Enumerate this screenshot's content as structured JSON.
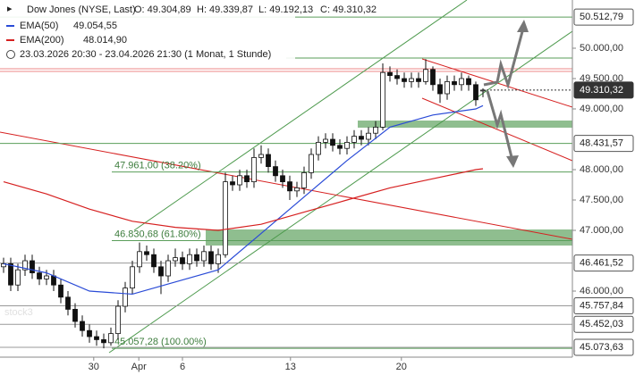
{
  "chart_data": {
    "type": "candlestick",
    "title": "Dow Jones (NYSE, Last)",
    "ohlc": [
      "O: 49.304,89",
      "H: 49.339,87",
      "L: 49.192,13",
      "C: 49.310,32"
    ],
    "period": "23.03.2026 20:30 - 23.04.2026 21:30  (1 Monat, 1 Stunde)",
    "watermark": "stock3",
    "xlim": [
      -0.5,
      79.5
    ],
    "xticks": [
      {
        "value": 12.6,
        "label": "30"
      },
      {
        "value": 18.9,
        "label": "Apr"
      },
      {
        "value": 25,
        "label": "6"
      },
      {
        "value": 40.1,
        "label": "13"
      },
      {
        "value": 55.6,
        "label": "20"
      }
    ],
    "ylim": [
      44912,
      50794
    ],
    "yticks": [
      {
        "value": 50000,
        "label": "50.000,00"
      },
      {
        "value": 49500,
        "label": "49.500,00"
      },
      {
        "value": 49000,
        "label": "49.000,00"
      },
      {
        "value": 48000,
        "label": "48.000,00"
      },
      {
        "value": 47500,
        "label": "47.500,00"
      },
      {
        "value": 47000,
        "label": "47.000,00"
      },
      {
        "value": 46000,
        "label": "46.000,00"
      }
    ],
    "candles": [
      [
        46400,
        46550,
        46300,
        46450
      ],
      [
        46450,
        46550,
        46000,
        46100
      ],
      [
        46100,
        46450,
        46000,
        46350
      ],
      [
        46350,
        46600,
        46250,
        46500
      ],
      [
        46500,
        46600,
        46200,
        46300
      ],
      [
        46300,
        46400,
        46100,
        46200
      ],
      [
        46200,
        46350,
        46100,
        46250
      ],
      [
        46250,
        46350,
        46000,
        46100
      ],
      [
        46100,
        46200,
        45800,
        45900
      ],
      [
        45900,
        46000,
        45600,
        45700
      ],
      [
        45700,
        45800,
        45400,
        45500
      ],
      [
        45500,
        45600,
        45250,
        45350
      ],
      [
        45350,
        45450,
        45150,
        45250
      ],
      [
        45250,
        45350,
        45100,
        45200
      ],
      [
        45200,
        45300,
        45057.28,
        45150
      ],
      [
        45150,
        45400,
        45100,
        45300
      ],
      [
        45300,
        45850,
        45200,
        45750
      ],
      [
        45750,
        46150,
        45650,
        46050
      ],
      [
        46050,
        46500,
        45950,
        46400
      ],
      [
        46400,
        46800,
        46300,
        46650
      ],
      [
        46650,
        46750,
        46500,
        46600
      ],
      [
        46600,
        46700,
        46300,
        46400
      ],
      [
        46400,
        46500,
        45950,
        46250
      ],
      [
        46250,
        46600,
        46150,
        46500
      ],
      [
        46500,
        46700,
        46400,
        46550
      ],
      [
        46550,
        46650,
        46350,
        46450
      ],
      [
        46450,
        46700,
        46350,
        46600
      ],
      [
        46600,
        46700,
        46400,
        46500
      ],
      [
        46500,
        46750,
        46400,
        46650
      ],
      [
        46650,
        46750,
        46350,
        46450
      ],
      [
        46450,
        46700,
        46300,
        46600
      ],
      [
        46600,
        47950,
        46550,
        47800
      ],
      [
        47800,
        47900,
        47650,
        47750
      ],
      [
        47750,
        48000,
        47650,
        47900
      ],
      [
        47900,
        48000,
        47700,
        47800
      ],
      [
        47800,
        48350,
        47700,
        48200
      ],
      [
        48200,
        48400,
        48100,
        48250
      ],
      [
        48250,
        48350,
        47950,
        48050
      ],
      [
        48050,
        48150,
        47800,
        47900
      ],
      [
        47900,
        48000,
        47700,
        47800
      ],
      [
        47800,
        47900,
        47500,
        47650
      ],
      [
        47650,
        47800,
        47550,
        47700
      ],
      [
        47700,
        48050,
        47600,
        47950
      ],
      [
        47950,
        48350,
        47850,
        48250
      ],
      [
        48250,
        48550,
        48150,
        48450
      ],
      [
        48450,
        48600,
        48350,
        48500
      ],
      [
        48500,
        48600,
        48300,
        48400
      ],
      [
        48400,
        48500,
        48250,
        48350
      ],
      [
        48350,
        48550,
        48250,
        48450
      ],
      [
        48450,
        48650,
        48350,
        48550
      ],
      [
        48550,
        48650,
        48400,
        48500
      ],
      [
        48500,
        48700,
        48400,
        48600
      ],
      [
        48600,
        48800,
        48500,
        48700
      ],
      [
        48700,
        49750,
        48650,
        49600
      ],
      [
        49600,
        49700,
        49450,
        49550
      ],
      [
        49550,
        49650,
        49400,
        49500
      ],
      [
        49500,
        49600,
        49350,
        49450
      ],
      [
        49450,
        49600,
        49350,
        49500
      ],
      [
        49500,
        49600,
        49350,
        49450
      ],
      [
        49450,
        49820,
        49400,
        49650
      ],
      [
        49650,
        49700,
        49300,
        49400
      ],
      [
        49400,
        49500,
        49100,
        49250
      ],
      [
        49250,
        49550,
        49150,
        49450
      ],
      [
        49450,
        49550,
        49300,
        49400
      ],
      [
        49400,
        49600,
        49300,
        49500
      ],
      [
        49500,
        49550,
        49300,
        49400
      ],
      [
        49400,
        49450,
        49050,
        49150
      ],
      [
        49304.89,
        49339.87,
        49192.13,
        49310.32
      ]
    ],
    "series": [
      {
        "name": "EMA(50)",
        "legend_value": "49.054,55",
        "color": "#2a4bd7",
        "x": [
          0,
          6,
          12,
          18,
          24,
          30,
          36,
          42,
          48,
          54,
          60,
          66,
          67
        ],
        "values": [
          46450,
          46300,
          46000,
          45950,
          46150,
          46350,
          46950,
          47550,
          48150,
          48700,
          48900,
          49000,
          49054.55
        ]
      },
      {
        "name": "EMA(200)",
        "legend_value": "48.014,90",
        "color": "#d62020",
        "x": [
          0,
          6,
          12,
          18,
          24,
          30,
          36,
          42,
          48,
          54,
          60,
          66,
          67
        ],
        "values": [
          47800,
          47600,
          47350,
          47150,
          47050,
          47000,
          47100,
          47300,
          47500,
          47700,
          47850,
          48000,
          48014.9
        ]
      }
    ],
    "levels": [
      {
        "value": 50512.79,
        "label": "50.512,79",
        "color": "#5a9e5a"
      },
      {
        "value": 49310.32,
        "label": "49.310,32",
        "color": "#333333",
        "current": true
      },
      {
        "value": 48431.57,
        "label": "48.431,57",
        "color": "#5a9e5a"
      },
      {
        "value": 46461.52,
        "label": "46.461,52",
        "color": "#999999"
      },
      {
        "value": 45757.84,
        "label": "45.757,84",
        "color": "#999999"
      },
      {
        "value": 45452.03,
        "label": "45.452,03",
        "color": "#999999"
      },
      {
        "value": 45073.63,
        "label": "45.073,63",
        "color": "#999999"
      }
    ],
    "fib": [
      {
        "value": 47961,
        "label": "47.961,00 (38.20%)"
      },
      {
        "value": 46830.68,
        "label": "46.830,68 (61.80%)"
      },
      {
        "value": 45057.28,
        "label": "45.057,28 (100.00%)"
      }
    ]
  }
}
